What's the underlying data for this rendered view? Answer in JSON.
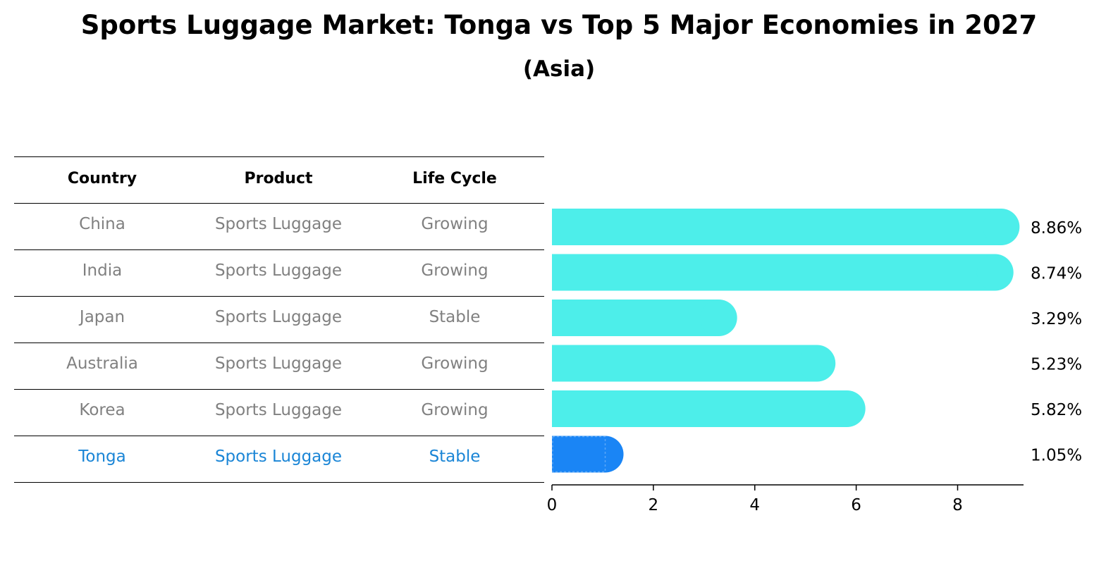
{
  "title": "Sports Luggage Market: Tonga vs Top 5 Major Economies in 2027",
  "subtitle": "(Asia)",
  "table": {
    "headers": [
      "Country",
      "Product",
      "Life Cycle"
    ],
    "rows": [
      {
        "country": "China",
        "product": "Sports Luggage",
        "life_cycle": "Growing",
        "highlight": false
      },
      {
        "country": "India",
        "product": "Sports Luggage",
        "life_cycle": "Growing",
        "highlight": false
      },
      {
        "country": "Japan",
        "product": "Sports Luggage",
        "life_cycle": "Stable",
        "highlight": false
      },
      {
        "country": "Australia",
        "product": "Sports Luggage",
        "life_cycle": "Growing",
        "highlight": false
      },
      {
        "country": "Korea",
        "product": "Sports Luggage",
        "life_cycle": "Growing",
        "highlight": false
      },
      {
        "country": "Tonga",
        "product": "Sports Luggage",
        "life_cycle": "Stable",
        "highlight": true
      }
    ]
  },
  "colors": {
    "bar": "#4deeea",
    "highlight_bar": "#1a85f5",
    "highlight_text": "#1a85d6",
    "row_text": "#808080"
  },
  "chart_data": {
    "type": "bar",
    "orientation": "horizontal",
    "categories": [
      "China",
      "India",
      "Japan",
      "Australia",
      "Korea",
      "Tonga"
    ],
    "values": [
      8.86,
      8.74,
      3.29,
      5.23,
      5.82,
      1.05
    ],
    "value_labels": [
      "8.86%",
      "8.74%",
      "3.29%",
      "5.23%",
      "5.82%",
      "1.05%"
    ],
    "highlight_category": "Tonga",
    "xlim": [
      0,
      9.3
    ],
    "xticks": [
      0,
      2,
      4,
      6,
      8
    ],
    "xtick_labels": [
      "0",
      "2",
      "4",
      "6",
      "8"
    ],
    "xlabel": "",
    "ylabel": "",
    "grid": false
  }
}
